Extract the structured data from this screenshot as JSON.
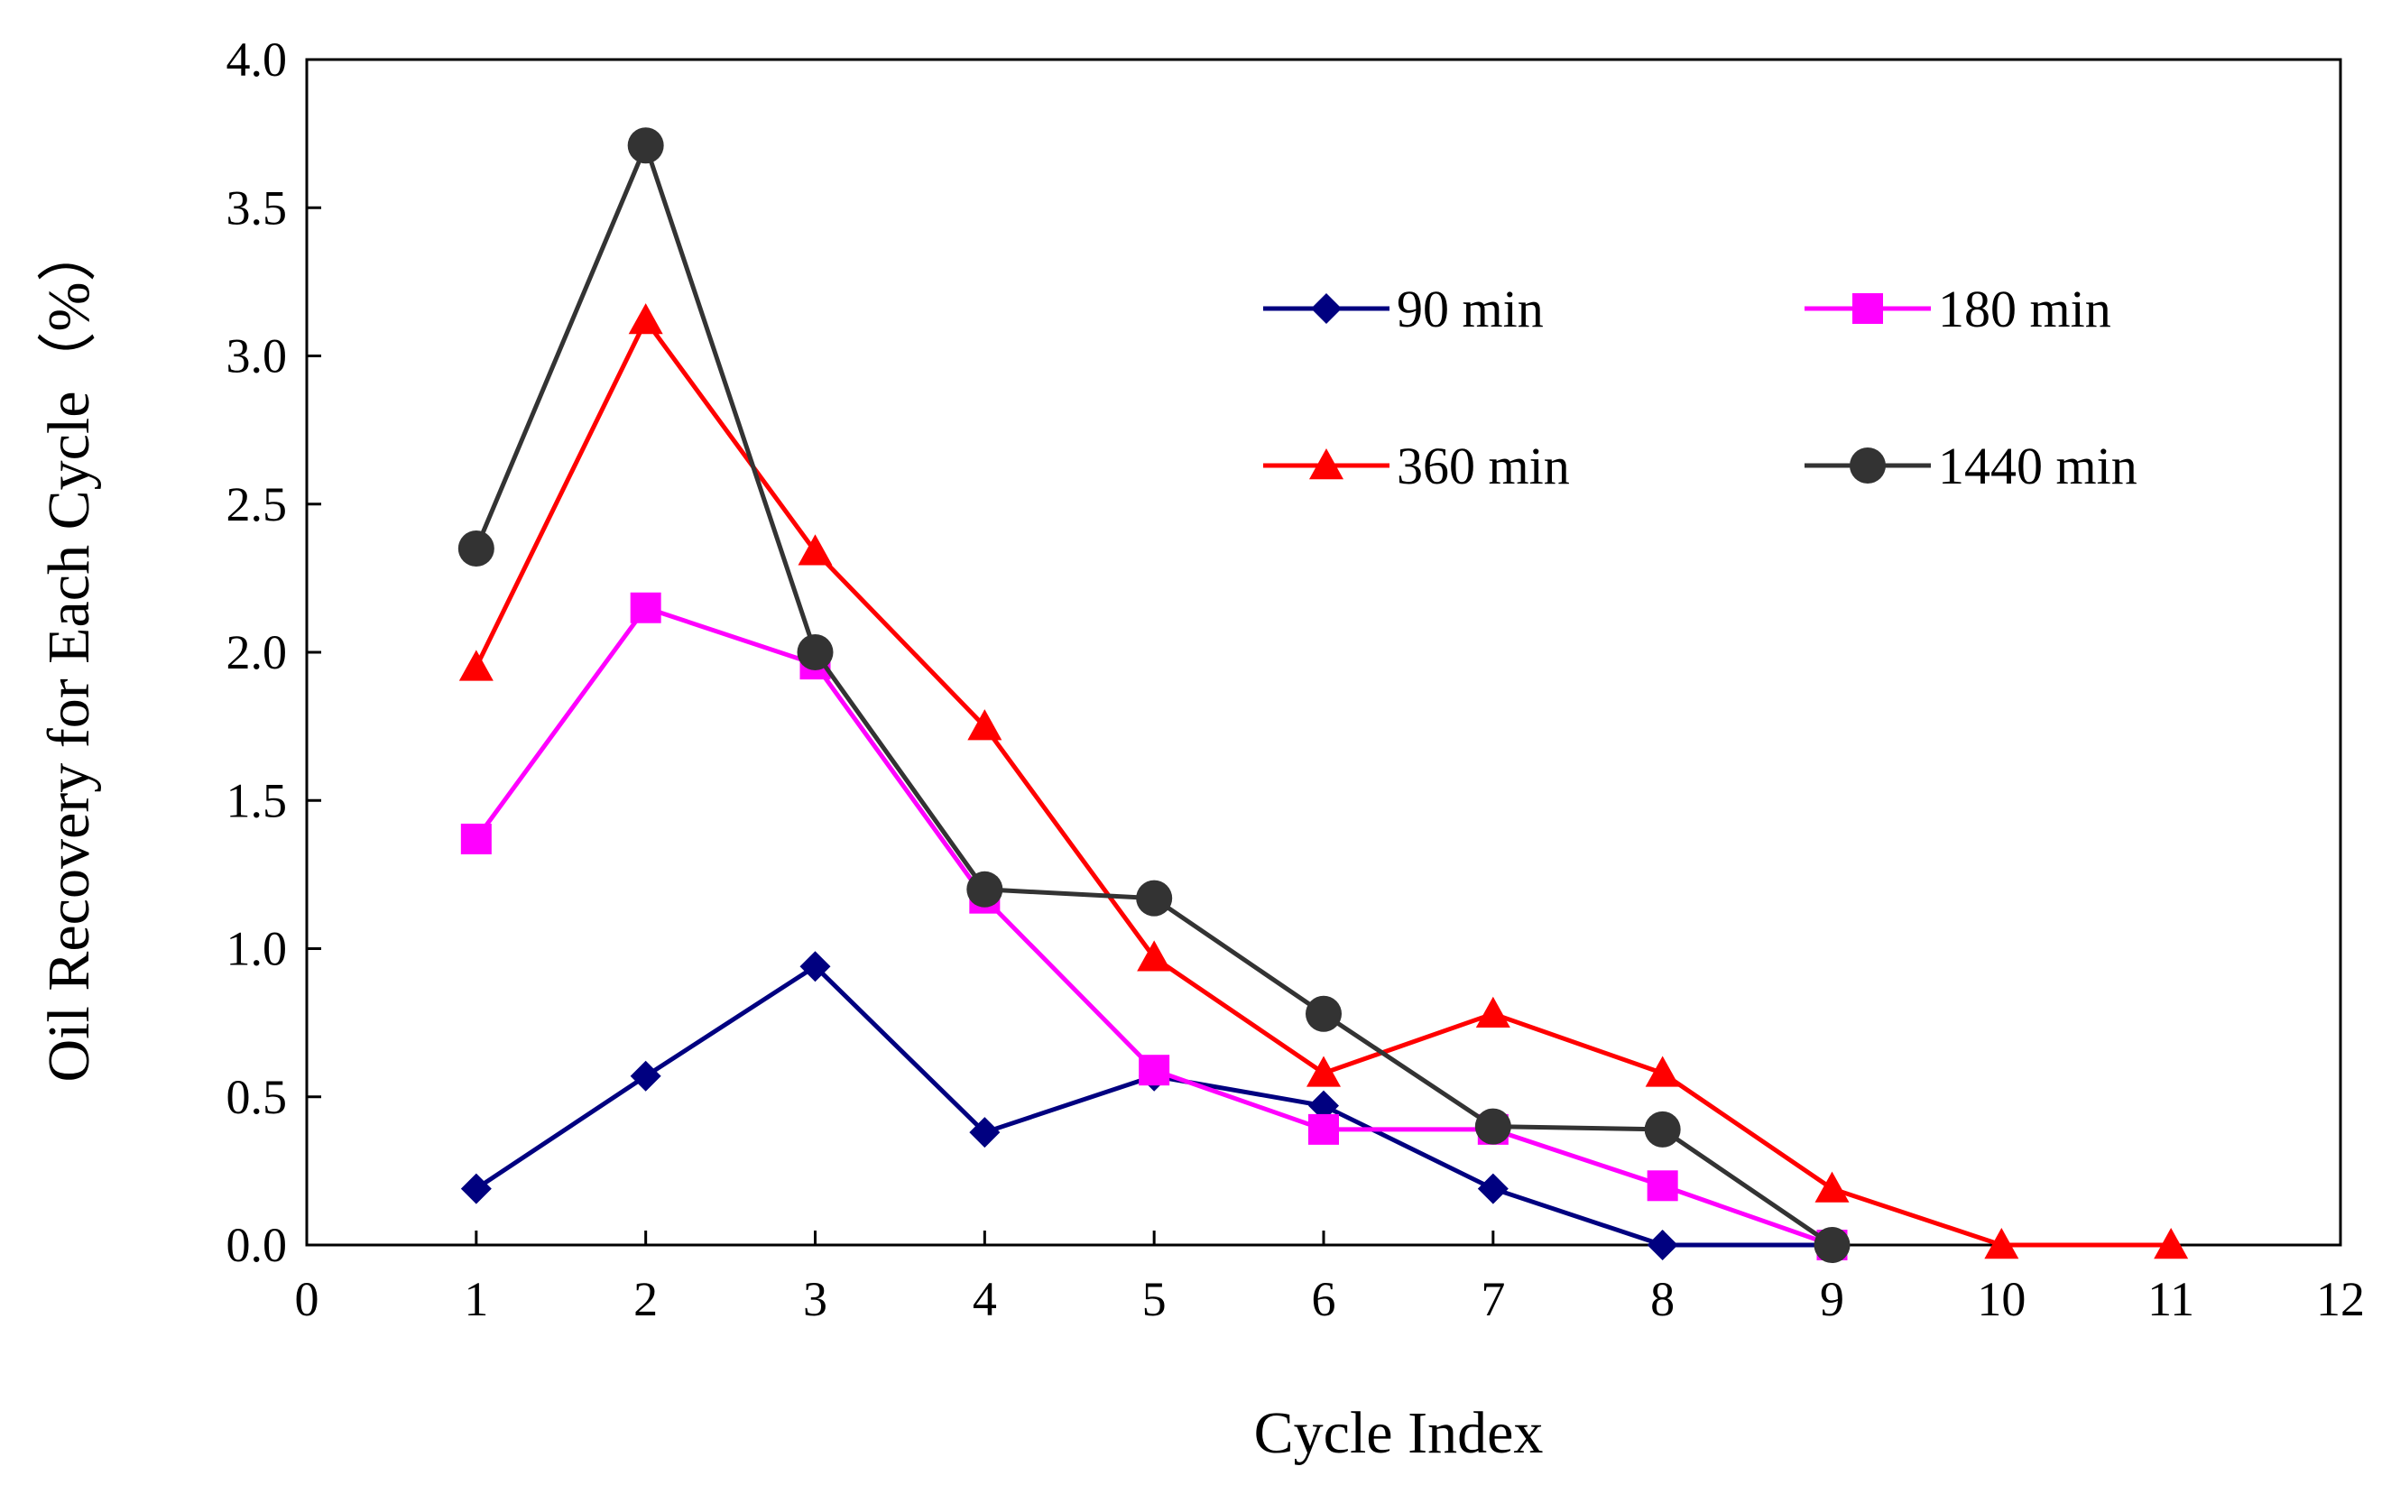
{
  "chart_data": {
    "type": "line",
    "title": "",
    "xlabel": "Cycle Index",
    "ylabel": "Oil Recovery for Each Cycle（%）",
    "xlim": [
      0,
      12
    ],
    "ylim": [
      0,
      4
    ],
    "xticks": [
      "0",
      "1",
      "2",
      "3",
      "4",
      "5",
      "6",
      "7",
      "8",
      "9",
      "10",
      "11",
      "12"
    ],
    "yticks": [
      "0.0",
      "0.5",
      "1.0",
      "1.5",
      "2.0",
      "2.5",
      "3.0",
      "3.5",
      "4.0"
    ],
    "grid": false,
    "legend_position": "top-right",
    "series": [
      {
        "name": "90 min",
        "color": "#000080",
        "marker": "diamond",
        "x": [
          1,
          2,
          3,
          4,
          5,
          6,
          7,
          8,
          9
        ],
        "values": [
          0.19,
          0.57,
          0.94,
          0.38,
          0.57,
          0.47,
          0.19,
          0.0,
          0.0
        ]
      },
      {
        "name": "180 min",
        "color": "#FF00FF",
        "marker": "square",
        "x": [
          1,
          2,
          3,
          4,
          5,
          6,
          7,
          8,
          9
        ],
        "values": [
          1.37,
          2.15,
          1.96,
          1.17,
          0.59,
          0.39,
          0.39,
          0.2,
          0.0
        ]
      },
      {
        "name": "360 min",
        "color": "#FF0000",
        "marker": "triangle",
        "x": [
          1,
          2,
          3,
          4,
          5,
          6,
          7,
          8,
          9,
          10,
          11
        ],
        "values": [
          1.95,
          3.12,
          2.34,
          1.75,
          0.97,
          0.58,
          0.78,
          0.58,
          0.19,
          0.0,
          0.0
        ]
      },
      {
        "name": "1440 min",
        "color": "#333333",
        "marker": "circle",
        "x": [
          1,
          2,
          3,
          4,
          5,
          6,
          7,
          8,
          9
        ],
        "values": [
          2.35,
          3.71,
          2.0,
          1.2,
          1.17,
          0.78,
          0.4,
          0.39,
          0.0
        ]
      }
    ]
  }
}
